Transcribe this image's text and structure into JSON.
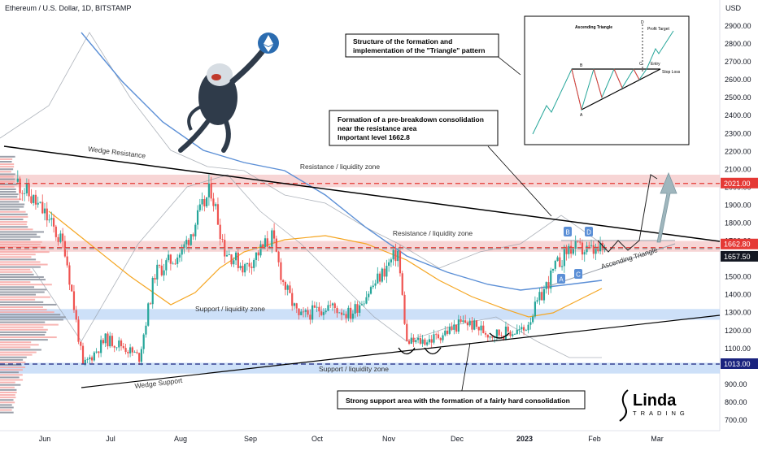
{
  "header": {
    "symbol_title": "Ethereum / U.S. Dollar, 1D, BITSTAMP"
  },
  "axis": {
    "currency": "USD",
    "y_ticks": [
      "2900.00",
      "2800.00",
      "2700.00",
      "2600.00",
      "2500.00",
      "2400.00",
      "2300.00",
      "2200.00",
      "2100.00",
      "2000.00",
      "1900.00",
      "1800.00",
      "1700.00",
      "1600.00",
      "1500.00",
      "1400.00",
      "1300.00",
      "1200.00",
      "1100.00",
      "1000.00",
      "900.00",
      "800.00",
      "700.00"
    ],
    "x_ticks": [
      "Jun",
      "Jul",
      "Aug",
      "Sep",
      "Oct",
      "Nov",
      "Dec",
      "2023",
      "Feb",
      "Mar"
    ]
  },
  "price_tags": {
    "level_2021": "2021.00",
    "level_1662": "1662.80",
    "level_1657": "1657.50",
    "level_1013": "1013.00"
  },
  "zones": {
    "top_resistance": "Resistance / liquidity zone",
    "mid_resistance": "Resistance / liquidity zone",
    "support_mid": "Support / liquidity zone",
    "support_low": "Support / liquidity zone"
  },
  "lines": {
    "wedge_resistance": "Wedge Resistance",
    "wedge_support": "Wedge Support",
    "ascending_triangle": "Ascending Triangle"
  },
  "annotations": {
    "structure": [
      "Structure of the formation and",
      "implementation of the \"Triangle\" pattern"
    ],
    "consolidation": [
      "Formation of a pre-breakdown consolidation",
      "near the resistance area",
      "Important level 1662.8"
    ],
    "support_note": "Strong support area with the formation of a fairly hard consolidation"
  },
  "pattern_labels": [
    "B",
    "D",
    "A",
    "C"
  ],
  "inset": {
    "title": "Ascending Triangle",
    "profit_target": "Profit Target",
    "entry": "Entry",
    "stop_loss": "Stop Loss",
    "points": [
      "B",
      "D",
      "A",
      "C",
      "D"
    ]
  },
  "logo": {
    "name": "Linda",
    "sub": "TRADING"
  },
  "colors": {
    "up": "#26a69a",
    "down": "#ef5350",
    "resistance_zone": "#f4c7c7",
    "support_zone": "#bcd6f5",
    "ma_blue": "#5b8fd6",
    "ma_orange": "#f5a623"
  },
  "chart_data": {
    "type": "candlestick",
    "title": "Ethereum / U.S. Dollar, 1D, BITSTAMP",
    "ylabel": "USD",
    "ylim": [
      650,
      2950
    ],
    "x_range": [
      "2022-05-20",
      "2023-03-15"
    ],
    "levels": [
      2021.0,
      1662.8,
      1657.5,
      1013.0
    ],
    "resistance_zones": [
      [
        2000,
        2070
      ],
      [
        1640,
        1700
      ]
    ],
    "support_zones": [
      [
        1260,
        1320
      ],
      [
        960,
        1020
      ]
    ],
    "price_path_close": [
      [
        "2022-05-20",
        2030
      ],
      [
        "2022-06-01",
        1850
      ],
      [
        "2022-06-10",
        1660
      ],
      [
        "2022-06-18",
        1000
      ],
      [
        "2022-06-28",
        1150
      ],
      [
        "2022-07-05",
        1120
      ],
      [
        "2022-07-13",
        1050
      ],
      [
        "2022-07-20",
        1520
      ],
      [
        "2022-08-01",
        1640
      ],
      [
        "2022-08-14",
        1990
      ],
      [
        "2022-08-20",
        1650
      ],
      [
        "2022-08-29",
        1550
      ],
      [
        "2022-09-10",
        1720
      ],
      [
        "2022-09-15",
        1470
      ],
      [
        "2022-09-22",
        1270
      ],
      [
        "2022-10-05",
        1340
      ],
      [
        "2022-10-15",
        1290
      ],
      [
        "2022-10-25",
        1450
      ],
      [
        "2022-11-05",
        1640
      ],
      [
        "2022-11-09",
        1130
      ],
      [
        "2022-11-20",
        1150
      ],
      [
        "2022-12-05",
        1250
      ],
      [
        "2022-12-16",
        1180
      ],
      [
        "2022-12-31",
        1200
      ],
      [
        "2023-01-14",
        1550
      ],
      [
        "2023-01-20",
        1660
      ],
      [
        "2023-02-01",
        1640
      ],
      [
        "2023-02-05",
        1650
      ]
    ]
  }
}
